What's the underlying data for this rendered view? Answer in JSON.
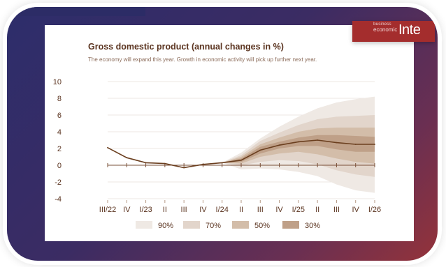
{
  "slide": {
    "brand_small": "business",
    "brand_mid": "economic",
    "brand_big": "Inte"
  },
  "chart_data": {
    "type": "area",
    "title": "Gross domestic product (annual changes in %)",
    "subtitle": "The economy will expand this year. Growth in economic activity will pick up further next year.",
    "categories": [
      "III/22",
      "IV",
      "I/23",
      "II",
      "III",
      "IV",
      "I/24",
      "II",
      "III",
      "IV",
      "I/25",
      "II",
      "III",
      "IV",
      "I/26"
    ],
    "ylim": [
      -4,
      10
    ],
    "yticks": [
      -4,
      -2,
      0,
      2,
      4,
      6,
      8,
      10
    ],
    "grid": true,
    "legend_position": "bottom",
    "series": [
      {
        "values": [
          2.1,
          0.9,
          0.3,
          0.2,
          -0.3,
          0.1,
          0.3,
          0.6,
          1.8,
          2.4,
          2.8,
          3.0,
          2.7,
          2.5,
          2.5
        ]
      }
    ],
    "fan_start_index": 6,
    "bands": [
      {
        "name": "90%",
        "color": "#efe9e4",
        "lower": [
          0.3,
          -0.5,
          -0.4,
          -0.5,
          -0.8,
          -1.3,
          -2.3,
          -3.0,
          -3.3
        ],
        "upper": [
          0.3,
          1.5,
          3.2,
          4.6,
          5.8,
          6.8,
          7.5,
          7.9,
          8.2
        ]
      },
      {
        "name": "70%",
        "color": "#e2d5cb",
        "lower": [
          0.3,
          0.0,
          0.4,
          0.6,
          0.5,
          0.1,
          -0.6,
          -1.1,
          -1.4
        ],
        "upper": [
          0.3,
          1.2,
          2.9,
          3.9,
          4.8,
          5.5,
          5.8,
          5.9,
          6.0
        ]
      },
      {
        "name": "50%",
        "color": "#d3bda9",
        "lower": [
          0.3,
          0.2,
          1.0,
          1.4,
          1.6,
          1.3,
          0.8,
          0.4,
          0.2
        ],
        "upper": [
          0.3,
          1.0,
          2.5,
          3.3,
          4.0,
          4.4,
          4.5,
          4.5,
          4.5
        ]
      },
      {
        "name": "30%",
        "color": "#bfa088",
        "lower": [
          0.3,
          0.4,
          1.4,
          2.0,
          2.3,
          2.3,
          1.9,
          1.6,
          1.6
        ],
        "upper": [
          0.3,
          0.8,
          2.2,
          2.8,
          3.3,
          3.6,
          3.6,
          3.5,
          3.4
        ]
      }
    ],
    "line_color": "#6b3f1f"
  }
}
